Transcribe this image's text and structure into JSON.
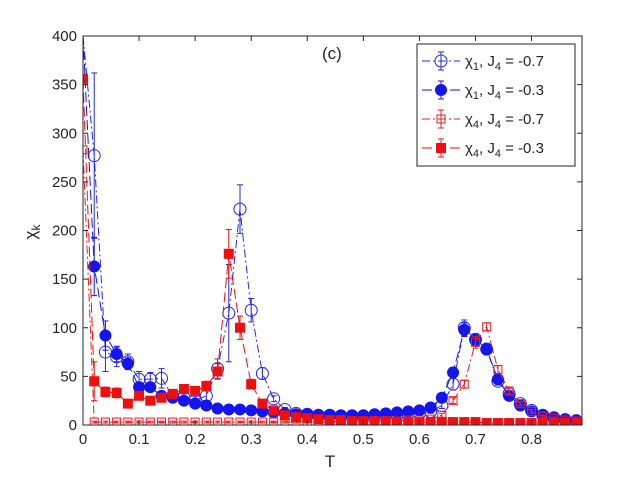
{
  "chart_data": {
    "type": "line",
    "title": "",
    "panel_label": "(c)",
    "xlabel": "T",
    "ylabel": "χ",
    "ylabel_sub": "k",
    "xlim": [
      0,
      0.89
    ],
    "ylim": [
      0,
      400
    ],
    "xticks": [
      0,
      0.1,
      0.2,
      0.3,
      0.4,
      0.5,
      0.6,
      0.7,
      0.8
    ],
    "xtick_labels": [
      "0",
      "0.1",
      "0.2",
      "0.3",
      "0.4",
      "0.5",
      "0.6",
      "0.7",
      "0.8"
    ],
    "yticks": [
      0,
      50,
      100,
      150,
      200,
      250,
      300,
      350,
      400
    ],
    "ytick_labels": [
      "0",
      "50",
      "100",
      "150",
      "200",
      "250",
      "300",
      "350",
      "400"
    ],
    "legend_position": "top-right",
    "x": [
      0,
      0.02,
      0.04,
      0.06,
      0.08,
      0.1,
      0.12,
      0.14,
      0.16,
      0.18,
      0.2,
      0.22,
      0.24,
      0.26,
      0.28,
      0.3,
      0.32,
      0.34,
      0.36,
      0.38,
      0.4,
      0.42,
      0.44,
      0.46,
      0.48,
      0.5,
      0.52,
      0.54,
      0.56,
      0.58,
      0.6,
      0.62,
      0.64,
      0.66,
      0.68,
      0.7,
      0.72,
      0.74,
      0.76,
      0.78,
      0.8,
      0.82,
      0.84,
      0.86,
      0.88
    ],
    "series": [
      {
        "name": "chi1_J4_m07",
        "legend_prefix": "χ",
        "legend_sub": "1",
        "legend_j": "J",
        "legend_jsub": "4",
        "legend_value": " = -0.7",
        "color": "#2828e6",
        "dash": "8 3 2 3",
        "marker": "circle",
        "filled": false,
        "values": [
          400,
          277,
          75,
          70,
          65,
          47,
          47,
          48,
          30,
          28,
          25,
          30,
          58,
          115,
          222,
          118,
          53,
          27,
          16,
          12,
          11,
          10,
          10,
          9,
          9,
          9,
          9,
          10,
          10,
          11,
          12,
          14,
          20,
          42,
          100,
          88,
          78,
          45,
          32,
          22,
          15,
          10,
          7,
          5,
          4
        ],
        "errors": [
          0,
          85,
          20,
          10,
          8,
          8,
          7,
          10,
          5,
          4,
          4,
          5,
          10,
          50,
          25,
          12,
          6,
          3,
          2,
          2,
          2,
          2,
          2,
          1,
          1,
          1,
          1,
          1,
          1,
          2,
          2,
          2,
          3,
          6,
          8,
          6,
          6,
          4,
          3,
          2,
          2,
          1,
          1,
          1,
          1
        ]
      },
      {
        "name": "chi1_J4_m03",
        "legend_prefix": "χ",
        "legend_sub": "1",
        "legend_j": "J",
        "legend_jsub": "4",
        "legend_value": " = -0.3",
        "color": "#1414ee",
        "dash": "10 4",
        "marker": "circle",
        "filled": true,
        "values": [
          400,
          163,
          92,
          73,
          63,
          39,
          39,
          30,
          28,
          25,
          22,
          20,
          17,
          16,
          16,
          15,
          14,
          13,
          12,
          11,
          11,
          10,
          10,
          10,
          10,
          10,
          11,
          12,
          13,
          14,
          15,
          18,
          28,
          54,
          98,
          87,
          78,
          47,
          30,
          20,
          14,
          10,
          8,
          6,
          5
        ],
        "errors": [
          0,
          30,
          15,
          8,
          6,
          5,
          4,
          4,
          3,
          3,
          3,
          3,
          2,
          2,
          2,
          2,
          2,
          2,
          2,
          2,
          1,
          1,
          1,
          1,
          1,
          1,
          1,
          1,
          1,
          1,
          2,
          2,
          3,
          5,
          7,
          6,
          5,
          4,
          3,
          2,
          2,
          1,
          1,
          1,
          1
        ]
      },
      {
        "name": "chi4_J4_m07",
        "legend_prefix": "χ",
        "legend_sub": "4",
        "legend_j": "J",
        "legend_jsub": "4",
        "legend_value": " = -0.7",
        "color": "#e61e1e",
        "dash": "8 3 2 3",
        "marker": "square",
        "filled": false,
        "values": [
          283,
          3,
          3,
          3,
          3,
          3,
          3,
          3,
          3,
          3,
          3,
          3,
          3,
          3,
          3,
          3,
          3,
          3,
          3,
          3,
          3,
          3,
          3,
          4,
          4,
          4,
          4,
          4,
          4,
          5,
          5,
          6,
          10,
          25,
          42,
          85,
          101,
          57,
          35,
          22,
          14,
          9,
          7,
          5,
          4
        ],
        "errors": [
          0,
          1,
          1,
          1,
          1,
          1,
          1,
          1,
          1,
          1,
          1,
          1,
          1,
          1,
          1,
          1,
          1,
          1,
          1,
          1,
          1,
          1,
          1,
          1,
          1,
          1,
          1,
          1,
          1,
          1,
          1,
          1,
          2,
          3,
          4,
          6,
          4,
          4,
          3,
          2,
          2,
          1,
          1,
          1,
          1
        ]
      },
      {
        "name": "chi4_J4_m03",
        "legend_prefix": "χ",
        "legend_sub": "4",
        "legend_j": "J",
        "legend_jsub": "4",
        "legend_value": " = -0.3",
        "color": "#ee1010",
        "dash": "10 4",
        "marker": "square",
        "filled": true,
        "values": [
          356,
          45,
          34,
          33,
          22,
          30,
          25,
          28,
          32,
          37,
          35,
          40,
          55,
          176,
          100,
          42,
          22,
          15,
          10,
          8,
          7,
          6,
          5,
          5,
          4,
          4,
          4,
          4,
          3,
          3,
          3,
          3,
          3,
          3,
          3,
          3,
          2,
          2,
          2,
          2,
          2,
          2,
          2,
          2,
          2
        ],
        "errors": [
          0,
          20,
          5,
          5,
          4,
          4,
          4,
          4,
          4,
          4,
          4,
          5,
          8,
          25,
          12,
          5,
          3,
          2,
          2,
          1,
          1,
          1,
          1,
          1,
          1,
          1,
          1,
          1,
          1,
          1,
          1,
          1,
          1,
          1,
          1,
          1,
          1,
          1,
          1,
          1,
          1,
          1,
          1,
          1,
          1
        ]
      }
    ]
  }
}
